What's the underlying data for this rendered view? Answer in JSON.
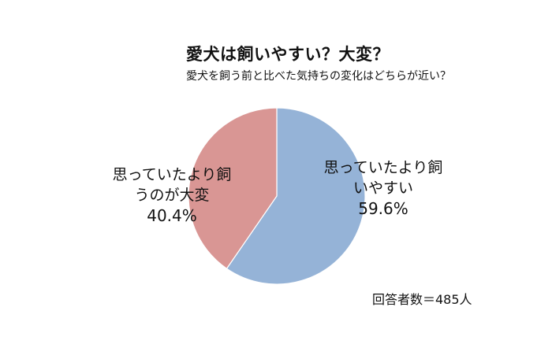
{
  "title": "愛犬は飼いやすい？大変？",
  "subtitle": "愛犬を飼う前と比べた気持ちの変化はどちらが近い？",
  "respondents": "回答者数＝485人",
  "chart_data": {
    "type": "pie",
    "title": "愛犬は飼いやすい？大変？",
    "subtitle": "愛犬を飼う前と比べた気持ちの変化はどちらが近い？",
    "start": "12 o'clock",
    "direction": "clockwise",
    "series": [
      {
        "slices": [
          {
            "label": "思っていたより飼\nいやすい",
            "value": 59.6,
            "value_label": "59.6%",
            "color": "#95b3d7"
          },
          {
            "label": "思っていたより飼\nうのが大変",
            "value": 40.4,
            "value_label": "40.4%",
            "color": "#d99694"
          }
        ]
      }
    ]
  }
}
